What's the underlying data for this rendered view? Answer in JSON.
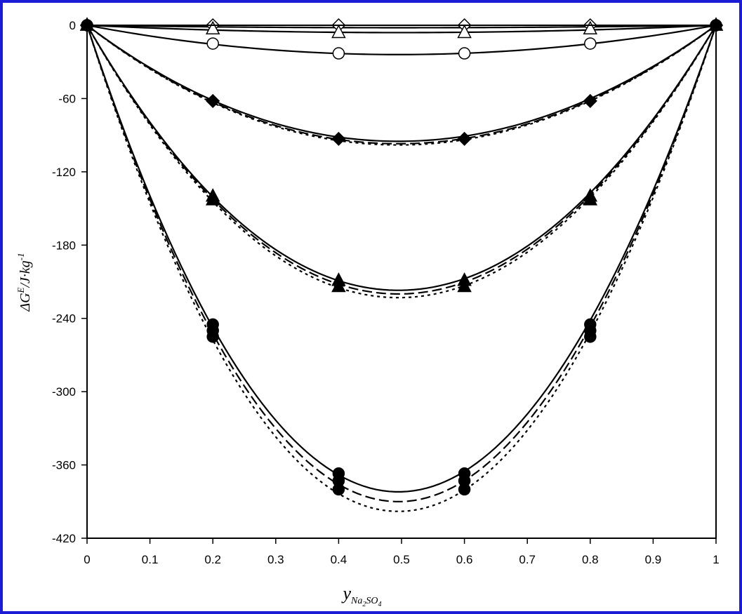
{
  "frame_color": "#1c1cd6",
  "chart_data": {
    "type": "line",
    "title": "",
    "xlabel": {
      "main": "y",
      "subscript": "Na",
      "sub2": "2",
      "sub3": "SO",
      "sub4": "4"
    },
    "ylabel": {
      "delta": "ΔG",
      "sup": "E",
      "unit": "/J·kg",
      "unitsup": "-1"
    },
    "xlim": [
      0,
      1
    ],
    "ylim": [
      -420,
      0
    ],
    "x_ticks": [
      "0",
      "0.1",
      "0.2",
      "0.3",
      "0.4",
      "0.5",
      "0.6",
      "0.7",
      "0.8",
      "0.9",
      "1"
    ],
    "y_ticks": [
      "0",
      "-60",
      "-120",
      "-180",
      "-240",
      "-300",
      "-360",
      "-420"
    ],
    "grid": false,
    "series": [
      {
        "marker": "diamond-open",
        "x": [
          0,
          0.2,
          0.4,
          0.6,
          0.8,
          1
        ],
        "y": [
          0,
          0,
          0,
          0,
          0,
          0
        ]
      },
      {
        "marker": "triangle-open",
        "x": [
          0,
          0.2,
          0.4,
          0.6,
          0.8,
          1
        ],
        "y": [
          0,
          -3,
          -6,
          -6,
          -3,
          0
        ]
      },
      {
        "marker": "circle-open",
        "x": [
          0,
          0.2,
          0.4,
          0.6,
          0.8,
          1
        ],
        "y": [
          0,
          -15,
          -23,
          -23,
          -15,
          0
        ]
      },
      {
        "marker": "diamond-filled",
        "x": [
          0,
          0.2,
          0.4,
          0.6,
          0.8,
          1
        ],
        "y": [
          0,
          -62,
          -93,
          -93,
          -62,
          0
        ]
      },
      {
        "marker": "triangle-filled",
        "x": [
          0,
          0.2,
          0.2,
          0.4,
          0.4,
          0.6,
          0.6,
          0.8,
          0.8,
          1
        ],
        "y": [
          0,
          -140,
          -143,
          -209,
          -214,
          -209,
          -214,
          -140,
          -143,
          0
        ]
      },
      {
        "marker": "circle-filled",
        "x": [
          0,
          0.2,
          0.2,
          0.2,
          0.4,
          0.4,
          0.4,
          0.6,
          0.6,
          0.6,
          0.8,
          0.8,
          0.8,
          1
        ],
        "y": [
          0,
          -245,
          -250,
          -255,
          -367,
          -373,
          -380,
          -367,
          -373,
          -380,
          -245,
          -250,
          -255,
          0
        ]
      }
    ],
    "curves": [
      {
        "style": "solid",
        "y_min": -2
      },
      {
        "style": "solid",
        "y_min": -6
      },
      {
        "style": "solid",
        "y_min": -24
      },
      {
        "style": "solid",
        "y_min": -95
      },
      {
        "style": "dashed",
        "y_min": -97
      },
      {
        "style": "dotted",
        "y_min": -98
      },
      {
        "style": "solid",
        "y_min": -217
      },
      {
        "style": "dashed",
        "y_min": -220
      },
      {
        "style": "dotted",
        "y_min": -223
      },
      {
        "style": "solid",
        "y_min": -382
      },
      {
        "style": "dashed",
        "y_min": -390
      },
      {
        "style": "dotted",
        "y_min": -398
      }
    ]
  }
}
